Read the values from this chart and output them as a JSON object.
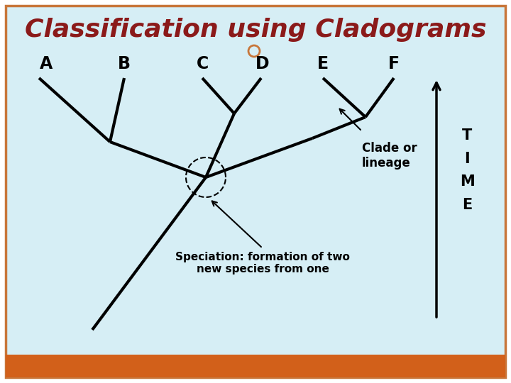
{
  "title": "Classification using Cladograms",
  "title_color": "#8B1A1A",
  "title_fontsize": 26,
  "bg_color": "#d6eef5",
  "outer_bg": "#ffffff",
  "border_color": "#c8763a",
  "bottom_bar_color": "#d2601a",
  "species_labels": [
    "A",
    "B",
    "C",
    "D",
    "E",
    "F"
  ],
  "label_fontsize": 17,
  "line_color": "#000000",
  "line_width": 3.0,
  "time_label": "T\nI\nM\nE",
  "time_fontsize": 15,
  "clade_label": "Clade or\nlineage",
  "clade_fontsize": 12,
  "speciation_label": "Speciation: formation of two\nnew species from one",
  "speciation_fontsize": 11
}
